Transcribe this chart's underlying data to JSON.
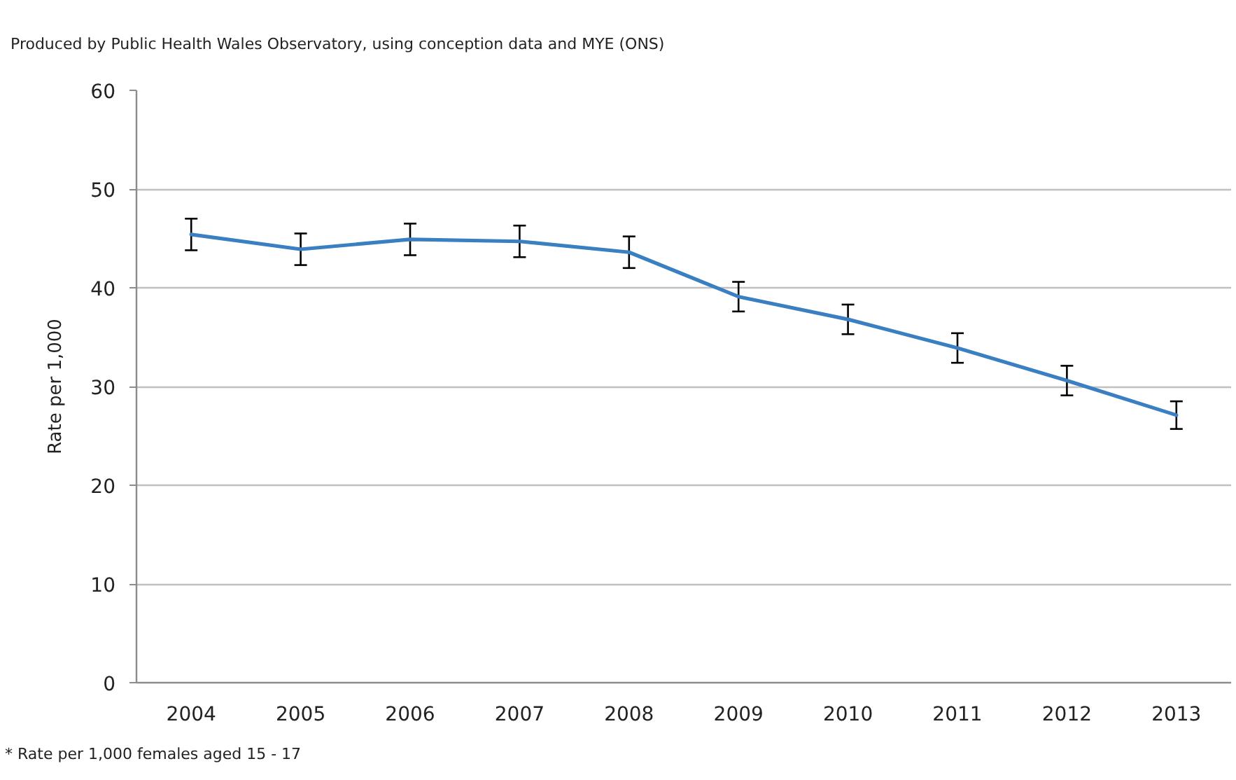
{
  "chart_data": {
    "type": "line",
    "ylabel": "Rate per 1,000",
    "annotations": [
      "Produced by Public Health Wales Observatory, using conception data and MYE (ONS)",
      "* Rate per 1,000 females aged 15 - 17"
    ],
    "categories": [
      "2004",
      "2005",
      "2006",
      "2007",
      "2008",
      "2009",
      "2010",
      "2011",
      "2012",
      "2013"
    ],
    "series": [
      {
        "color": "#3a7fc1",
        "values": [
          45.4,
          43.9,
          44.9,
          44.7,
          43.6,
          39.1,
          36.8,
          33.9,
          30.6,
          27.1
        ],
        "errors": [
          1.6,
          1.6,
          1.6,
          1.6,
          1.6,
          1.5,
          1.5,
          1.5,
          1.5,
          1.4
        ]
      }
    ],
    "ylim": [
      0,
      60
    ],
    "yticks": [
      0,
      10,
      20,
      30,
      40,
      50,
      60
    ],
    "grid": "y"
  }
}
